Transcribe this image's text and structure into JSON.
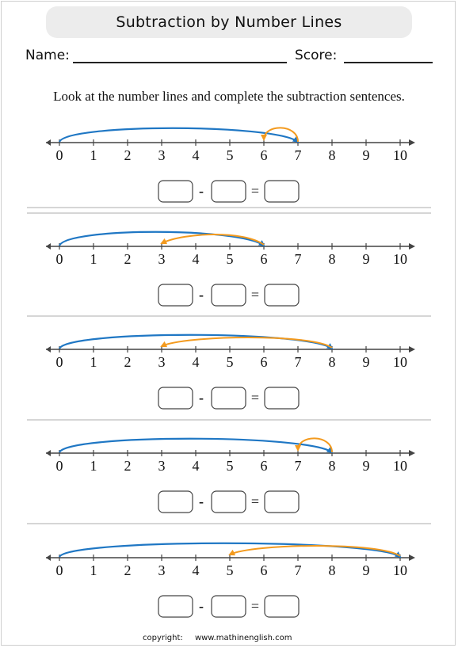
{
  "title": "Subtraction by Number Lines",
  "name_label": "Name:",
  "score_label": "Score:",
  "instruction": "Look at the number lines and complete the subtraction sentences.",
  "tick_labels": [
    "0",
    "1",
    "2",
    "3",
    "4",
    "5",
    "6",
    "7",
    "8",
    "9",
    "10"
  ],
  "minus_sign": "-",
  "equals_sign": "=",
  "colors": {
    "blue_arc": "#1f77c4",
    "orange_arc": "#f39a1e",
    "axis": "#444444"
  },
  "problems": [
    {
      "start": 7,
      "subtract": 1,
      "end": 6
    },
    {
      "start": 6,
      "subtract": 3,
      "end": 3
    },
    {
      "start": 8,
      "subtract": 5,
      "end": 3
    },
    {
      "start": 8,
      "subtract": 1,
      "end": 7
    },
    {
      "start": 10,
      "subtract": 5,
      "end": 5
    }
  ],
  "footer": {
    "copyright": "copyright:",
    "site": "www.mathinenglish.com"
  }
}
